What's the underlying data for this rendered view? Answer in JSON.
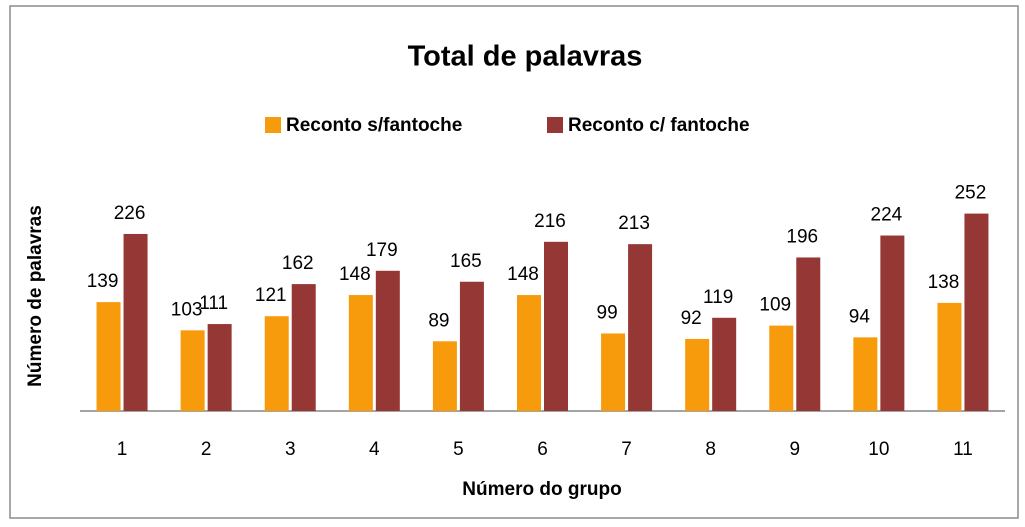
{
  "chart_data": {
    "type": "bar",
    "title": "Total de palavras",
    "x_label": "Número do grupo",
    "y_label": "Número de palavras",
    "categories": [
      "1",
      "2",
      "3",
      "4",
      "5",
      "6",
      "7",
      "8",
      "9",
      "10",
      "11"
    ],
    "series": [
      {
        "name": "Reconto s/fantoche",
        "color": "#f79a0b",
        "values": [
          139,
          103,
          121,
          148,
          89,
          148,
          99,
          92,
          109,
          94,
          138
        ]
      },
      {
        "name": "Reconto c/ fantoche",
        "color": "#953735",
        "values": [
          226,
          111,
          162,
          179,
          165,
          216,
          213,
          119,
          196,
          224,
          252
        ]
      }
    ],
    "ylim": [
      0,
      300
    ],
    "legend": "top"
  }
}
